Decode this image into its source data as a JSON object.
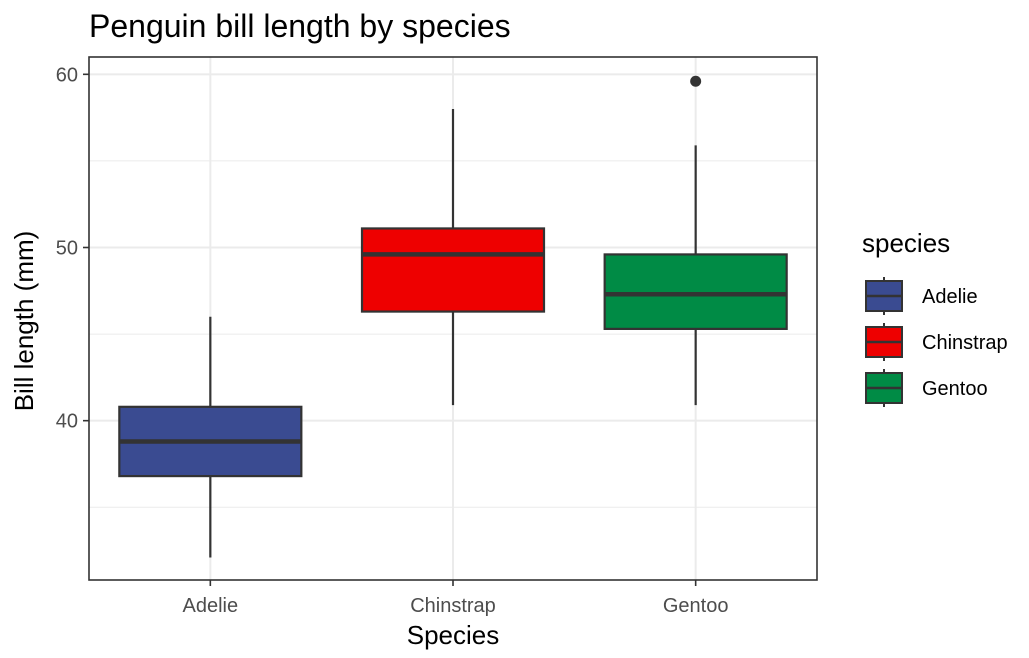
{
  "chart_data": {
    "type": "boxplot",
    "title": "Penguin bill length by species",
    "xlabel": "Species",
    "ylabel": "Bill length (mm)",
    "categories": [
      "Adelie",
      "Chinstrap",
      "Gentoo"
    ],
    "ylim": [
      30.8,
      61
    ],
    "y_ticks": [
      40,
      50,
      60
    ],
    "y_tick_labels": [
      "40",
      "50",
      "60"
    ],
    "grid": true,
    "legend": {
      "title": "species",
      "position": "right",
      "entries": [
        "Adelie",
        "Chinstrap",
        "Gentoo"
      ]
    },
    "series": [
      {
        "name": "Adelie",
        "color": "#3a4b91",
        "min": 32.1,
        "q1": 36.8,
        "median": 38.8,
        "q3": 40.8,
        "max": 46.0,
        "outliers": []
      },
      {
        "name": "Chinstrap",
        "color": "#ee0000",
        "min": 40.9,
        "q1": 46.3,
        "median": 49.6,
        "q3": 51.1,
        "max": 58.0,
        "outliers": []
      },
      {
        "name": "Gentoo",
        "color": "#008b45",
        "min": 40.9,
        "q1": 45.3,
        "median": 47.3,
        "q3": 49.6,
        "max": 55.9,
        "outliers": [
          59.6
        ]
      }
    ]
  }
}
